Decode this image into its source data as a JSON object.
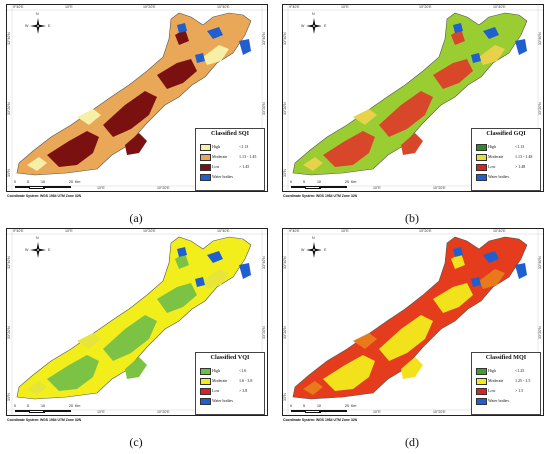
{
  "coordinate_system": "Coordinate System: WGS 1984 UTM Zone 32N",
  "scale": {
    "n0": "0",
    "n5": "5",
    "n10": "10",
    "n20": "20",
    "unit": "Km"
  },
  "north": {
    "n": "N",
    "e": "E",
    "w": "W"
  },
  "ticks": {
    "top_a": "9°40'E",
    "top_b": "10°E",
    "top_c": "10°20'E",
    "top_d": "10°40'E",
    "bottom_a": "10°E",
    "bottom_b": "10°20'E",
    "bottom_c": "10°40'E",
    "left_a": "33°40'N",
    "left_b": "33°20'N",
    "left_c": "33°N",
    "right_a": "33°40'N",
    "right_b": "33°20'N",
    "right_c": "33°N"
  },
  "panels": [
    {
      "caption": "(a)",
      "legend_title": "Classified SQI",
      "colors": {
        "base": "#e8a857",
        "patch": "#7a1010",
        "light": "#f6f0a6",
        "water": "#1f5fd0"
      },
      "rows": [
        {
          "label": "High",
          "range": "<1.13",
          "color": "#f6f0a6"
        },
        {
          "label": "Moderate",
          "range": "1.13 - 1.45",
          "color": "#e8a857"
        },
        {
          "label": "Low",
          "range": "> 1.45",
          "color": "#7a1010"
        },
        {
          "label": "Water bodies",
          "range": "",
          "color": "#1f5fd0"
        }
      ]
    },
    {
      "caption": "(b)",
      "legend_title": "Classified GQI",
      "colors": {
        "base": "#9acd32",
        "patch": "#d9472b",
        "light": "#e8d24a",
        "water": "#1f5fd0"
      },
      "rows": [
        {
          "label": "High",
          "range": "<1.13",
          "color": "#2e8b22"
        },
        {
          "label": "Moderate",
          "range": "1.13 - 1.48",
          "color": "#e8e03a"
        },
        {
          "label": "Low",
          "range": "> 1.48",
          "color": "#e02020"
        },
        {
          "label": "Water bodies",
          "range": "",
          "color": "#1f5fd0"
        }
      ]
    },
    {
      "caption": "(c)",
      "legend_title": "Classified VQI",
      "colors": {
        "base": "#f2ee1c",
        "patch": "#7cc245",
        "light": "#e7e43a",
        "water": "#1f5fd0"
      },
      "rows": [
        {
          "label": "High",
          "range": "<1.6",
          "color": "#6fbf3f"
        },
        {
          "label": "Moderate",
          "range": "1.6 - 3.8",
          "color": "#f2ee1c"
        },
        {
          "label": "Low",
          "range": "> 3.8",
          "color": "#e02020"
        },
        {
          "label": "Water bodies",
          "range": "",
          "color": "#1f5fd0"
        }
      ]
    },
    {
      "caption": "(d)",
      "legend_title": "Classified MQI",
      "colors": {
        "base": "#e43c1c",
        "patch": "#f2e21c",
        "light": "#e87a1c",
        "water": "#1f5fd0"
      },
      "rows": [
        {
          "label": "High",
          "range": "<1.25",
          "color": "#3f9f2a"
        },
        {
          "label": "Moderate",
          "range": "1.25 - 1.5",
          "color": "#f2ee1c"
        },
        {
          "label": "Low",
          "range": "> 1.5",
          "color": "#e02020"
        },
        {
          "label": "Water bodies",
          "range": "",
          "color": "#1f5fd0"
        }
      ]
    }
  ]
}
